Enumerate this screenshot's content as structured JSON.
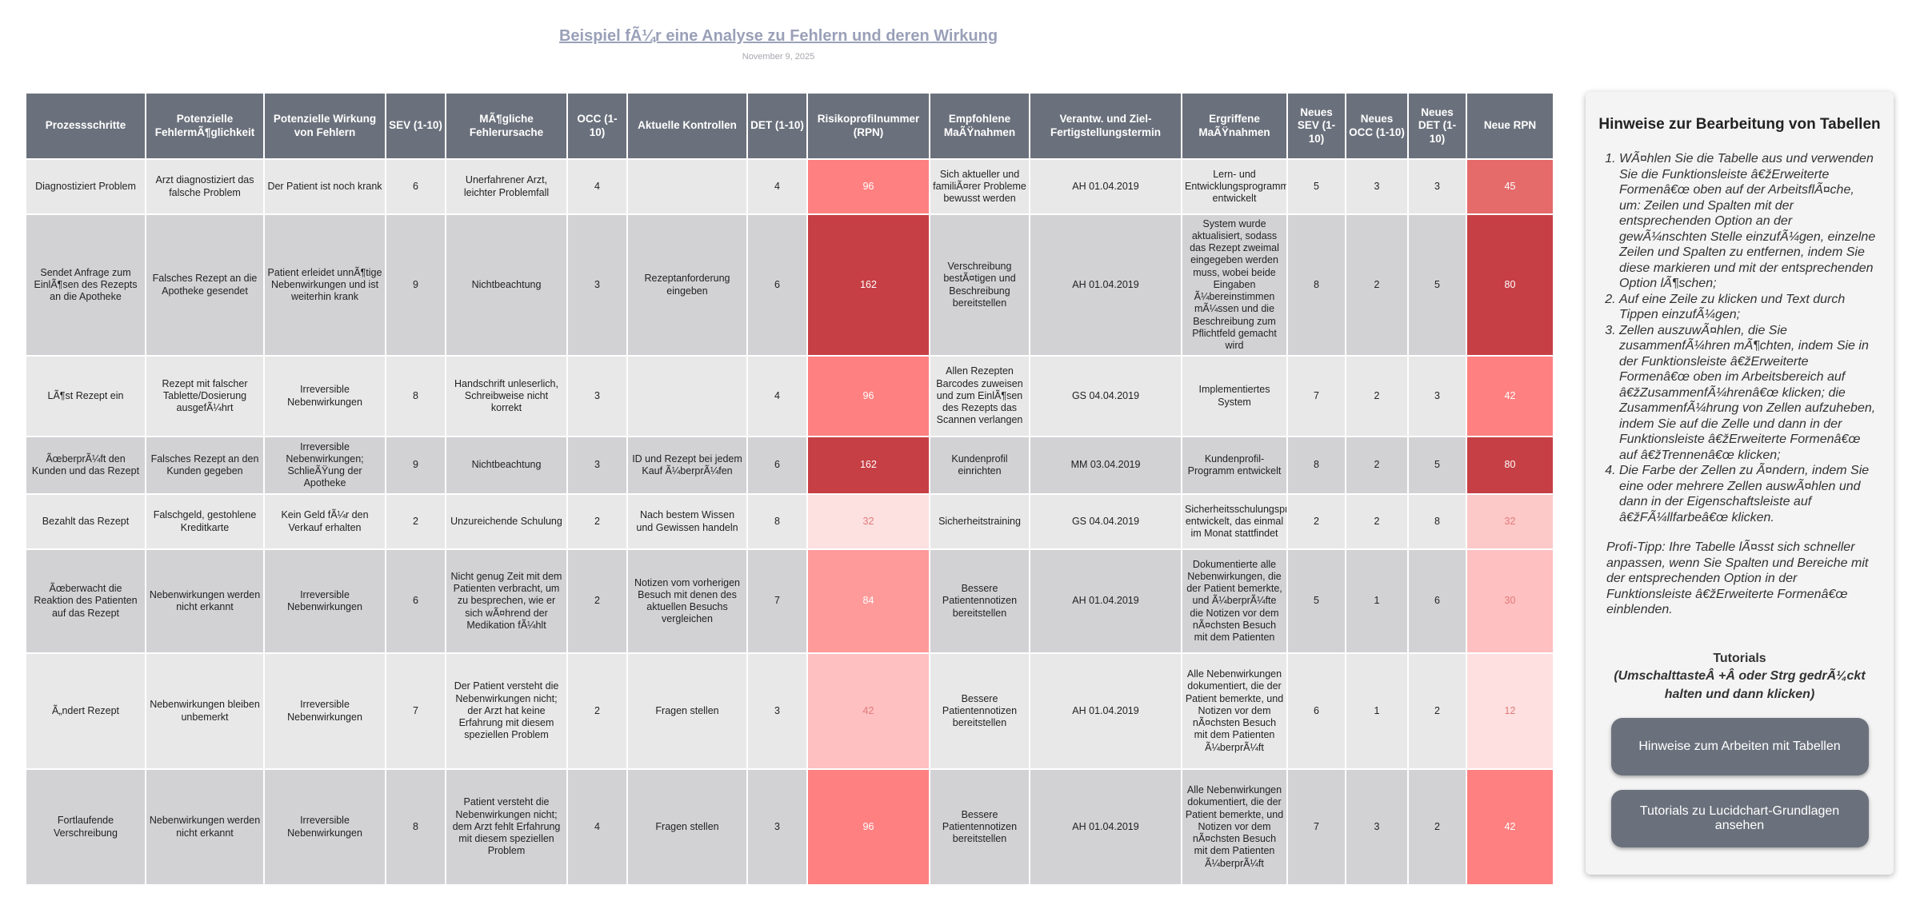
{
  "header": {
    "title": "Beispiel fÃ¼r eine Analyse zu Fehlern und deren Wirkung",
    "date": "November 9, 2025"
  },
  "table": {
    "headers": [
      "Prozessschritte",
      "Potenzielle FehlermÃ¶glichkeit",
      "Potenzielle Wirkung von Fehlern",
      "SEV (1-10)",
      "MÃ¶gliche Fehlerursache",
      "OCC (1-10)",
      "Aktuelle Kontrollen",
      "DET (1-10)",
      "Risikoprofilnummer (RPN)",
      "Empfohlene MaÃŸnahmen",
      "Verantw. und Ziel-Fertigstellungstermin",
      "Ergriffene MaÃŸnahmen",
      "Neues SEV (1-10)",
      "Neues OCC (1-10)",
      "Neues DET (1-10)",
      "Neue RPN"
    ],
    "rows": [
      [
        "Diagnostiziert Problem",
        "Arzt diagnostiziert das falsche Problem",
        "Der Patient ist noch krank",
        6,
        "Unerfahrener Arzt, leichter Problemfall",
        4,
        null,
        4,
        96,
        "Sich aktueller und familiÃ¤rer Probleme bewusst werden",
        "AH 01.04.2019",
        "Lern- und Entwicklungsprogramm entwickelt",
        5,
        3,
        3,
        45
      ],
      [
        "Sendet Anfrage zum EinlÃ¶sen des Rezepts an die Apotheke",
        "Falsches Rezept an die Apotheke gesendet",
        "Patient erleidet unnÃ¶tige Nebenwirkungen und ist weiterhin krank",
        9,
        "Nichtbeachtung",
        3,
        "Rezeptanforderung eingeben",
        6,
        162,
        "Verschreibung bestÃ¤tigen und Beschreibung bereitstellen",
        "AH 01.04.2019",
        "System wurde aktualisiert, sodass das Rezept zweimal eingegeben werden muss, wobei beide Eingaben Ã¼bereinstimmen mÃ¼ssen und die Beschreibung zum Pflichtfeld gemacht wird",
        8,
        2,
        5,
        80
      ],
      [
        "LÃ¶st Rezept ein",
        "Rezept mit falscher Tablette/Dosierung ausgefÃ¼hrt",
        "Irreversible Nebenwirkungen",
        8,
        "Handschrift unleserlich, Schreibweise nicht korrekt",
        3,
        null,
        4,
        96,
        "Allen Rezepten Barcodes zuweisen und zum EinlÃ¶sen des Rezepts das Scannen verlangen",
        "GS 04.04.2019",
        "Implementiertes System",
        7,
        2,
        3,
        42
      ],
      [
        "ÃœberprÃ¼ft den Kunden und das Rezept",
        "Falsches Rezept an den Kunden gegeben",
        "Irreversible Nebenwirkungen; SchlieÃŸung der Apotheke",
        9,
        "Nichtbeachtung",
        3,
        "ID und Rezept bei jedem Kauf Ã¼berprÃ¼fen",
        6,
        162,
        "Kundenprofil einrichten",
        "MM 03.04.2019",
        "Kundenprofil-Programm entwickelt",
        8,
        2,
        5,
        80
      ],
      [
        "Bezahlt das Rezept",
        "Falschgeld, gestohlene Kreditkarte",
        "Kein Geld fÃ¼r den Verkauf erhalten",
        2,
        "Unzureichende Schulung",
        2,
        "Nach bestem Wissen und Gewissen handeln",
        8,
        32,
        "Sicherheitstraining",
        "GS 04.04.2019",
        "Sicherheitsschulungsprogramms entwickelt, das einmal im Monat stattfindet",
        2,
        2,
        8,
        32
      ],
      [
        "Ãœberwacht die Reaktion des Patienten auf das Rezept",
        "Nebenwirkungen werden nicht erkannt",
        "Irreversible Nebenwirkungen",
        6,
        "Nicht genug Zeit mit dem Patienten verbracht, um zu besprechen, wie er sich wÃ¤hrend der Medikation fÃ¼hlt",
        2,
        "Notizen vom vorherigen Besuch mit denen des aktuellen Besuchs vergleichen",
        7,
        84,
        "Bessere Patientennotizen bereitstellen",
        "AH 01.04.2019",
        "Dokumentierte alle Nebenwirkungen, die der Patient bemerkte, und Ã¼berprÃ¼fte die Notizen vor dem nÃ¤chsten Besuch mit dem Patienten",
        5,
        1,
        6,
        30
      ],
      [
        "Ã„ndert Rezept",
        "Nebenwirkungen bleiben unbemerkt",
        "Irreversible Nebenwirkungen",
        7,
        "Der Patient versteht die Nebenwirkungen nicht; der Arzt hat keine Erfahrung mit diesem speziellen Problem",
        2,
        "Fragen stellen",
        3,
        42,
        "Bessere Patientennotizen bereitstellen",
        "AH 01.04.2019",
        "Alle Nebenwirkungen dokumentiert, die der Patient bemerkte, und Notizen vor dem nÃ¤chsten Besuch mit dem Patienten Ã¼berprÃ¼ft",
        6,
        1,
        2,
        12
      ],
      [
        "Fortlaufende Verschreibung",
        "Nebenwirkungen werden nicht erkannt",
        "Irreversible Nebenwirkungen",
        8,
        "Patient versteht die Nebenwirkungen nicht; dem Arzt fehlt Erfahrung mit diesem speziellen Problem",
        4,
        "Fragen stellen",
        3,
        96,
        "Bessere Patientennotizen bereitstellen",
        "AH 01.04.2019",
        "Alle Nebenwirkungen dokumentiert, die der Patient bemerkte, und Notizen vor dem nÃ¤chsten Besuch mit dem Patienten Ã¼berprÃ¼ft",
        7,
        3,
        2,
        42
      ]
    ],
    "rpn_colors": [
      {
        "rpn": "#fe8080",
        "new_rpn": "#e56a6a"
      },
      {
        "rpn": "#c63f44",
        "new_rpn": "#c63f44"
      },
      {
        "rpn": "#fe8080",
        "new_rpn": "#fe8080"
      },
      {
        "rpn": "#c63f44",
        "new_rpn": "#c63f44"
      },
      {
        "rpn": "#fde0e0",
        "new_rpn": "#fdc8c8"
      },
      {
        "rpn": "#fe9a9a",
        "new_rpn": "#fec0c0"
      },
      {
        "rpn": "#fec0c0",
        "new_rpn": "#fee0e0"
      },
      {
        "rpn": "#fe8080",
        "new_rpn": "#fe8080"
      }
    ]
  },
  "panel": {
    "title": "Hinweise zur Bearbeitung von Tabellen",
    "items": [
      "WÃ¤hlen Sie die Tabelle aus und verwenden Sie die Funktionsleiste â€žErweiterte Formenâ€œ oben auf der ArbeitsflÃ¤che, um: Zeilen und Spalten mit der entsprechenden Option an der gewÃ¼nschten Stelle einzufÃ¼gen, einzelne Zeilen und Spalten zu entfernen, indem Sie diese markieren und mit der entsprechenden Option lÃ¶schen;",
      "Auf eine Zeile zu klicken und Text durch Tippen einzufÃ¼gen;",
      "Zellen auszuwÃ¤hlen, die Sie zusammenfÃ¼hren mÃ¶chten, indem Sie in der Funktionsleiste â€žErweiterte Formenâ€œ oben im Arbeitsbereich auf â€žZusammenfÃ¼hrenâ€œ klicken; die ZusammenfÃ¼hrung von Zellen aufzuheben, indem Sie auf die Zelle und dann in der Funktionsleiste â€žErweiterte Formenâ€œ auf â€žTrennenâ€œ klicken;",
      "Die Farbe der Zellen zu Ã¤ndern, indem Sie eine oder mehrere Zellen auswÃ¤hlen und dann in der Eigenschaftsleiste auf â€žFÃ¼llfarbeâ€œ klicken."
    ],
    "tip": "Profi-Tipp: Ihre Tabelle lÃ¤sst sich schneller anpassen, wenn Sie Spalten und Bereiche mit der entsprechenden Option in der Funktionsleiste â€žErweiterte Formenâ€œ einblenden.",
    "tutorials_heading": "Tutorials",
    "tutorials_hint": "(UmschalttasteÂ +Â oder Strg gedrÃ¼ckt halten und dann klicken)",
    "buttons": [
      "Hinweise zum Arbeiten mit Tabellen",
      "Tutorials zu Lucidchart-Grundlagen ansehen"
    ]
  }
}
